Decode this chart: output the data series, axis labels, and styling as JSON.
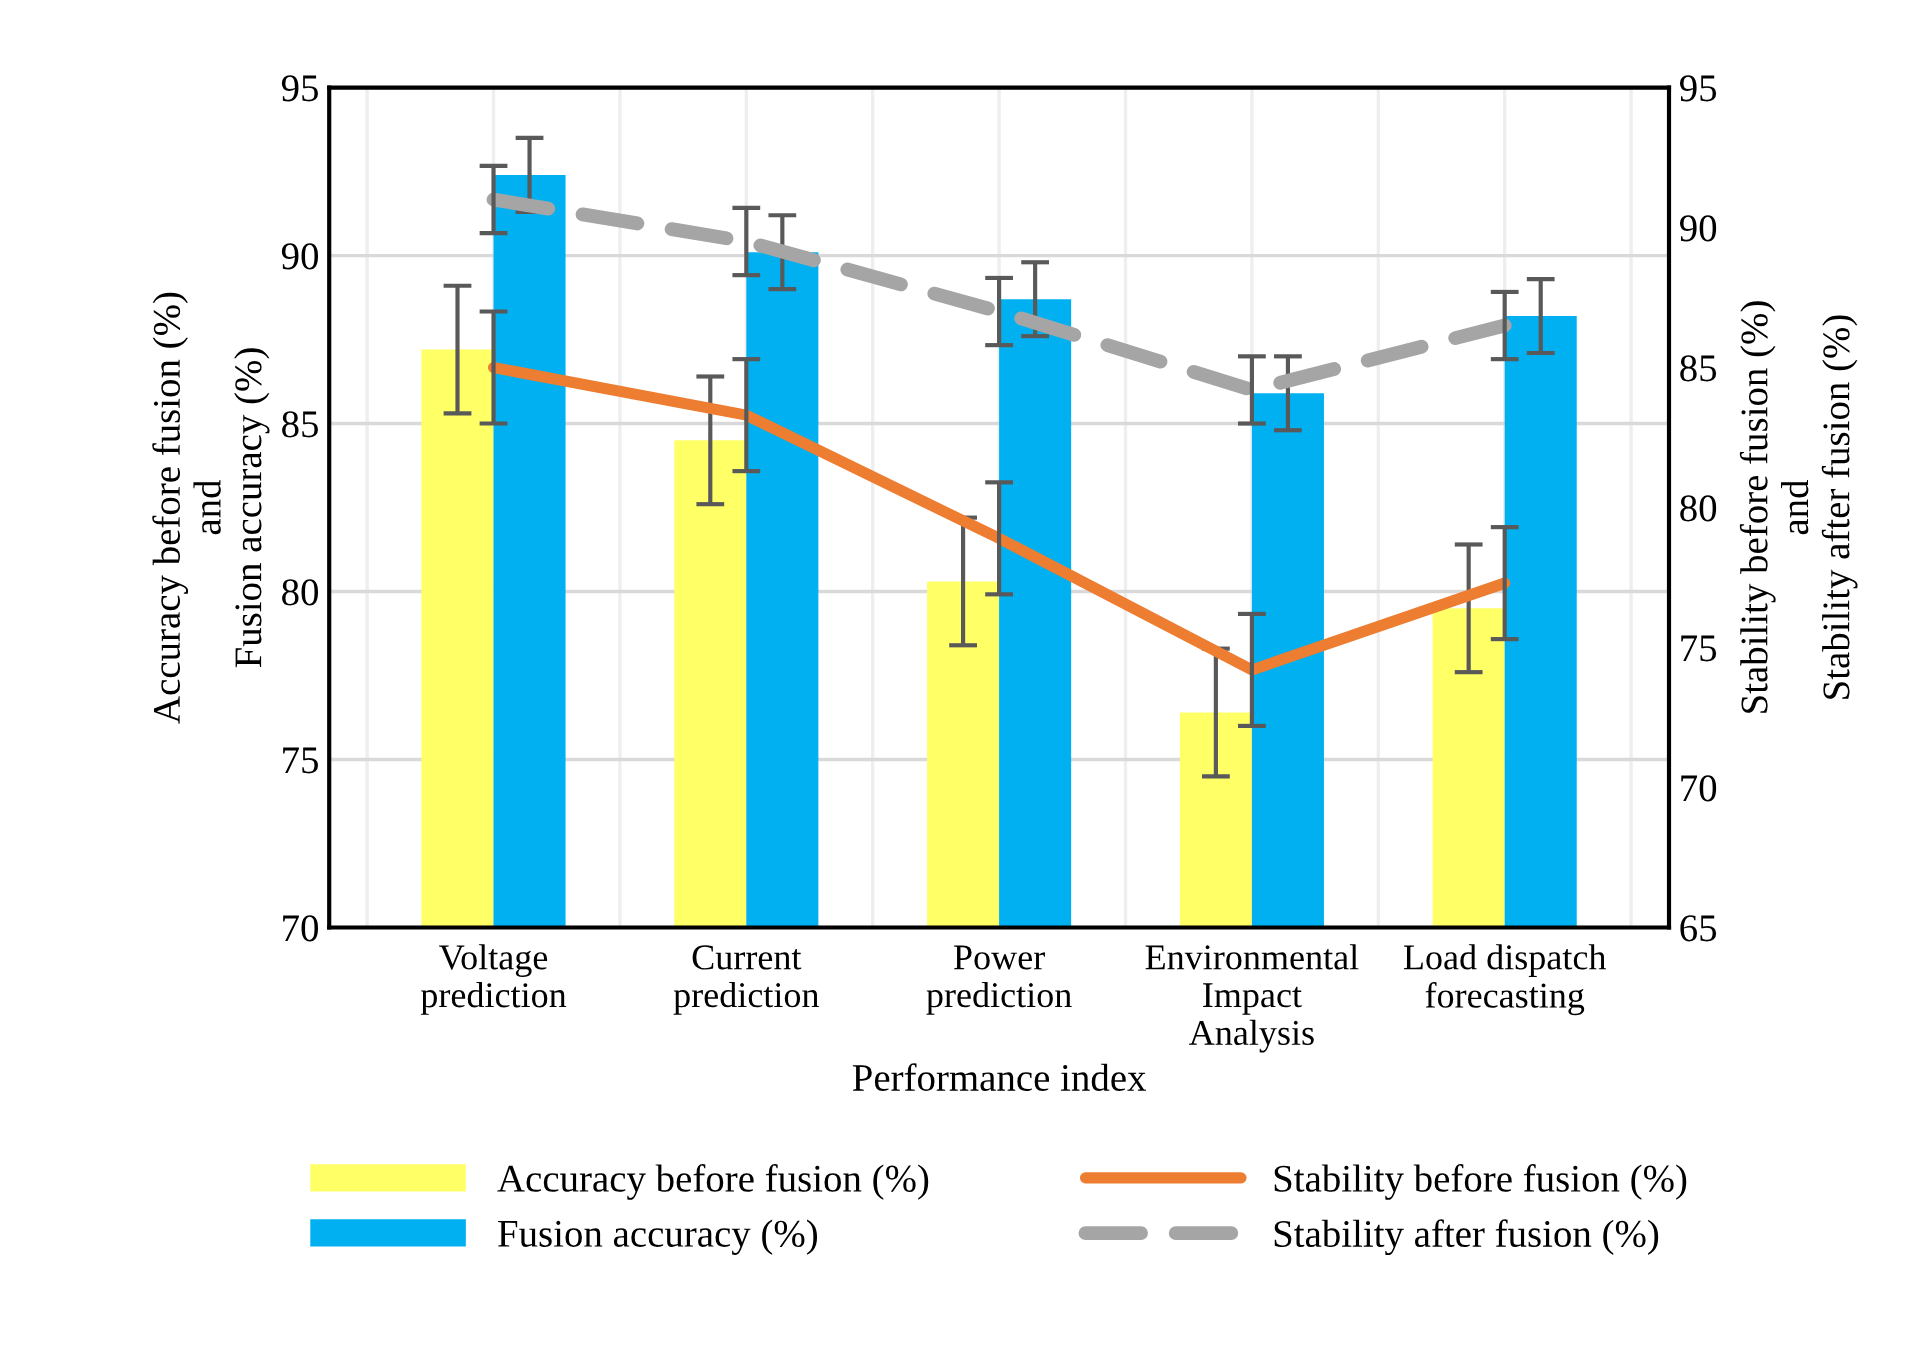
{
  "chart_data": {
    "type": "bar",
    "xlabel": "Performance index",
    "ylabel": "Accuracy before fusion (%)\nand\nFusion accuracy (%)",
    "y2label": "Stability before fusion (%)\nand\nStability after fusion (%)",
    "categories": [
      "Voltage\nprediction",
      "Current\nprediction",
      "Power\nprediction",
      "Environmental\nImpact\nAnalysis",
      "Load dispatch\nforecasting"
    ],
    "series": [
      {
        "name": "Accuracy before fusion (%)",
        "color": "#ffff66",
        "values": [
          87.2,
          84.5,
          80.3,
          76.4,
          79.5
        ],
        "errors": [
          1.9,
          1.9,
          1.9,
          1.9,
          1.9
        ]
      },
      {
        "name": "Fusion accuracy (%)",
        "color": "#00b0f0",
        "values": [
          92.4,
          90.1,
          88.7,
          85.9,
          88.2
        ],
        "errors": [
          1.1,
          1.1,
          1.1,
          1.1,
          1.1
        ]
      },
      {
        "name": "Stability before fusion (%)",
        "type": "line",
        "axis": "y2",
        "color": "#ed7d31",
        "line_style": "solid",
        "values": [
          85.0,
          83.3,
          78.9,
          74.2,
          77.3
        ],
        "errors": [
          2,
          2,
          2,
          2,
          2
        ]
      },
      {
        "name": "Stability after fusion (%)",
        "type": "line",
        "axis": "y2",
        "color": "#a5a5a5",
        "line_style": "dashed",
        "values": [
          91.0,
          89.5,
          87.0,
          84.2,
          86.5
        ],
        "errors": [
          1.2,
          1.2,
          1.2,
          1.2,
          1.2
        ]
      }
    ],
    "ylim": [
      70,
      95
    ],
    "yticks": [
      70,
      75,
      80,
      85,
      90,
      95
    ],
    "y2lim": [
      65,
      95
    ],
    "y2ticks": [
      65,
      70,
      75,
      80,
      85,
      90,
      95
    ],
    "grid": true,
    "legend": "bottom",
    "marker": "none"
  }
}
